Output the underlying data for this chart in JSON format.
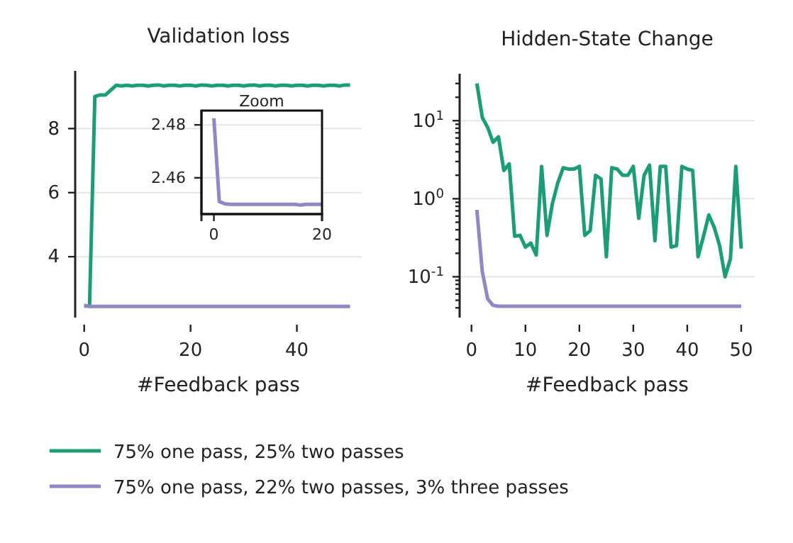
{
  "chart_data": [
    {
      "type": "line",
      "title": "Validation loss",
      "xlabel": "#Feedback pass",
      "xlim": [
        -1.7,
        52.2
      ],
      "ylim": [
        2.1,
        9.8
      ],
      "xticks": [
        0,
        20,
        40
      ],
      "yticks": [
        4,
        6,
        8
      ],
      "grid": "y",
      "legend": "bottom",
      "tick_labels": "xy",
      "x": [
        0,
        1,
        2,
        3,
        4,
        5,
        6,
        7,
        8,
        9,
        10,
        11,
        12,
        13,
        14,
        15,
        16,
        17,
        18,
        19,
        20,
        21,
        22,
        23,
        24,
        25,
        26,
        27,
        28,
        29,
        30,
        31,
        32,
        33,
        34,
        35,
        36,
        37,
        38,
        39,
        40,
        41,
        42,
        43,
        44,
        45,
        46,
        47,
        48,
        49,
        50
      ],
      "series": [
        {
          "name": "75% one pass, 25% two passes",
          "color": "#1b9e77",
          "marker": "none",
          "values": [
            2.46,
            2.46,
            9.0,
            9.05,
            9.05,
            9.2,
            9.35,
            9.33,
            9.35,
            9.33,
            9.35,
            9.35,
            9.33,
            9.35,
            9.36,
            9.33,
            9.35,
            9.35,
            9.33,
            9.35,
            9.35,
            9.33,
            9.36,
            9.35,
            9.33,
            9.35,
            9.35,
            9.33,
            9.35,
            9.35,
            9.33,
            9.35,
            9.36,
            9.33,
            9.35,
            9.35,
            9.33,
            9.35,
            9.35,
            9.33,
            9.35,
            9.35,
            9.33,
            9.35,
            9.35,
            9.33,
            9.35,
            9.35,
            9.33,
            9.36,
            9.36
          ]
        },
        {
          "name": "75% one pass, 22% two passes, 3% three passes",
          "color": "#8e89c6",
          "values": [
            2.48,
            2.45,
            2.45,
            2.45,
            2.45,
            2.45,
            2.45,
            2.45,
            2.45,
            2.45,
            2.45,
            2.45,
            2.45,
            2.45,
            2.45,
            2.45,
            2.45,
            2.45,
            2.45,
            2.45,
            2.45,
            2.45,
            2.45,
            2.45,
            2.45,
            2.45,
            2.45,
            2.45,
            2.45,
            2.45,
            2.45,
            2.45,
            2.45,
            2.45,
            2.45,
            2.45,
            2.45,
            2.45,
            2.45,
            2.45,
            2.45,
            2.45,
            2.45,
            2.45,
            2.45,
            2.45,
            2.45,
            2.45,
            2.45,
            2.45,
            2.45
          ]
        }
      ]
    },
    {
      "type": "line",
      "title": "Hidden-State Change",
      "xlabel": "#Feedback pass",
      "log": "y",
      "xlim": [
        -2.2,
        52.5
      ],
      "ylim": [
        0.03,
        40
      ],
      "xticks": [
        0,
        10,
        20,
        30,
        40,
        50
      ],
      "yticks": [
        {
          "value": 0.04,
          "label": null
        },
        {
          "value": 0.05,
          "label": null
        },
        {
          "value": 0.06,
          "label": null
        },
        {
          "value": 0.07,
          "label": null
        },
        {
          "value": 0.08,
          "label": null
        },
        {
          "value": 0.09,
          "label": null
        },
        {
          "value": 0.1,
          "label": "10$^{-1}$"
        },
        {
          "value": 0.2,
          "label": null
        },
        {
          "value": 0.3,
          "label": null
        },
        {
          "value": 0.4,
          "label": null
        },
        {
          "value": 0.5,
          "label": null
        },
        {
          "value": 0.6,
          "label": null
        },
        {
          "value": 0.7,
          "label": null
        },
        {
          "value": 0.8,
          "label": null
        },
        {
          "value": 0.9,
          "label": null
        },
        {
          "value": 1,
          "label": "10$^{0}$"
        },
        {
          "value": 2,
          "label": null
        },
        {
          "value": 3,
          "label": null
        },
        {
          "value": 4,
          "label": null
        },
        {
          "value": 5,
          "label": null
        },
        {
          "value": 6,
          "label": null
        },
        {
          "value": 7,
          "label": null
        },
        {
          "value": 8,
          "label": null
        },
        {
          "value": 9,
          "label": null
        },
        {
          "value": 10,
          "label": "10$^{1}$"
        },
        {
          "value": 20,
          "label": null
        },
        {
          "value": 30,
          "label": null
        }
      ],
      "grid": "y",
      "x": [
        1,
        2,
        3,
        4,
        5,
        6,
        7,
        8,
        9,
        10,
        11,
        12,
        13,
        14,
        15,
        16,
        17,
        18,
        19,
        20,
        21,
        22,
        23,
        24,
        25,
        26,
        27,
        28,
        29,
        30,
        31,
        32,
        33,
        34,
        35,
        36,
        37,
        38,
        39,
        40,
        41,
        42,
        43,
        44,
        45,
        46,
        47,
        48,
        49,
        50
      ],
      "series": [
        {
          "color": "#1b9e77",
          "marker": "none",
          "values": [
            30,
            11,
            8.2,
            5.3,
            6.2,
            2.3,
            2.8,
            0.33,
            0.34,
            0.24,
            0.27,
            0.19,
            2.6,
            0.34,
            0.87,
            1.6,
            2.5,
            2.4,
            2.4,
            2.6,
            0.34,
            0.39,
            2.0,
            1.8,
            0.18,
            2.5,
            2.4,
            2.0,
            2.0,
            2.6,
            0.56,
            2.0,
            2.7,
            0.29,
            2.6,
            2.6,
            0.24,
            0.25,
            2.6,
            2.4,
            2.3,
            0.18,
            0.33,
            0.62,
            0.43,
            0.25,
            0.1,
            0.17,
            2.6,
            0.23
          ]
        },
        {
          "color": "#8e89c6",
          "values": [
            0.72,
            0.117,
            0.052,
            0.043,
            0.042,
            0.042,
            0.042,
            0.042,
            0.042,
            0.042,
            0.042,
            0.042,
            0.042,
            0.042,
            0.042,
            0.042,
            0.042,
            0.042,
            0.042,
            0.042,
            0.042,
            0.042,
            0.042,
            0.042,
            0.042,
            0.042,
            0.042,
            0.042,
            0.042,
            0.042,
            0.042,
            0.042,
            0.042,
            0.042,
            0.042,
            0.042,
            0.042,
            0.042,
            0.042,
            0.042,
            0.042,
            0.042,
            0.042,
            0.042,
            0.042,
            0.042,
            0.042,
            0.042,
            0.042,
            0.042
          ]
        }
      ]
    },
    {
      "type": "line",
      "title": "Zoom",
      "xlim": [
        -2.3,
        20
      ],
      "ylim": [
        2.4463,
        2.4854
      ],
      "xticks": [
        0,
        20
      ],
      "yticks": [
        2.46,
        2.48
      ],
      "grid": "y",
      "x": [
        0,
        1,
        2,
        3,
        4,
        5,
        6,
        7,
        8,
        9,
        10,
        11,
        12,
        13,
        14,
        15,
        16,
        17,
        18,
        19,
        20
      ],
      "series": [
        {
          "color": "#8e89c6",
          "values": [
            2.4825,
            2.451,
            2.4502,
            2.45,
            2.45,
            2.45,
            2.45,
            2.45,
            2.45,
            2.45,
            2.45,
            2.45,
            2.45,
            2.45,
            2.45,
            2.45,
            2.4497,
            2.45,
            2.45,
            2.45,
            2.45
          ]
        }
      ]
    }
  ]
}
